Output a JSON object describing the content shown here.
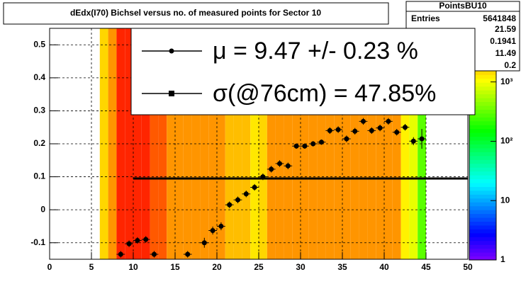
{
  "chart_data": {
    "type": "heatmap_profile",
    "title": "dEdx(I70) Bichsel versus no. of measured points for Sector 10",
    "xlim": [
      0,
      50
    ],
    "xticks": [
      0,
      5,
      10,
      15,
      20,
      25,
      30,
      35,
      40,
      45,
      50
    ],
    "ylim": [
      -0.15,
      0.55
    ],
    "yticks": [
      -0.1,
      0,
      0.1,
      0.2,
      0.3,
      0.4,
      0.5
    ],
    "zlim": [
      1,
      8000
    ],
    "zlog": true,
    "zticks": [
      1,
      10,
      {
        "value": 100,
        "label": "10²"
      },
      {
        "value": 1000,
        "label": "10³"
      }
    ],
    "grid": true,
    "heatmap": {
      "bins": [
        6,
        7,
        8,
        9,
        10,
        11,
        12,
        13,
        14,
        15,
        16,
        17,
        18,
        19,
        20,
        21,
        22,
        23,
        24,
        25,
        26,
        27,
        28,
        29,
        30,
        31,
        32,
        33,
        34,
        35,
        36,
        37,
        38,
        39,
        40,
        41,
        42,
        43,
        44,
        45
      ],
      "counts": [
        1500,
        2500,
        6000,
        6000,
        6000,
        6000,
        4000,
        4000,
        2500,
        2500,
        2500,
        2500,
        2500,
        2500,
        2500,
        1800,
        1800,
        1800,
        1300,
        1500,
        2500,
        2500,
        2500,
        2500,
        2500,
        2500,
        2500,
        2500,
        2500,
        2500,
        2500,
        2500,
        2500,
        2500,
        2500,
        2500,
        1200,
        900,
        300
      ]
    },
    "profile": {
      "color": "#000000",
      "x": [
        8.5,
        9.5,
        10.5,
        11.5,
        12.5,
        16.5,
        18.5,
        19.5,
        20.5,
        21.5,
        22.5,
        23.5,
        24.5,
        25.5,
        26.5,
        27.5,
        28.5,
        29.5,
        30.5,
        31.5,
        32.5,
        33.5,
        34.5,
        35.5,
        36.5,
        37.5,
        38.5,
        39.5,
        40.5,
        41.5,
        42.5,
        43.5,
        44.5
      ],
      "y": [
        -0.135,
        -0.103,
        -0.093,
        -0.09,
        -0.135,
        -0.135,
        -0.1,
        -0.063,
        -0.05,
        0.015,
        0.03,
        0.048,
        0.068,
        0.1,
        0.123,
        0.14,
        0.133,
        0.193,
        0.193,
        0.2,
        0.205,
        0.24,
        0.243,
        0.215,
        0.238,
        0.268,
        0.24,
        0.248,
        0.268,
        0.235,
        0.25,
        0.208,
        0.215
      ],
      "err": [
        0.01,
        0.01,
        0.01,
        0.01,
        0.01,
        0.01,
        0.015,
        0.012,
        0.012,
        0.01,
        0.01,
        0.01,
        0.01,
        0.01,
        0.01,
        0.01,
        0.01,
        0.008,
        0.008,
        0.008,
        0.008,
        0.01,
        0.01,
        0.01,
        0.01,
        0.01,
        0.01,
        0.01,
        0.01,
        0.01,
        0.01,
        0.012,
        0.03
      ]
    },
    "fit": {
      "x": [
        10,
        50
      ],
      "y": 0.0947,
      "color": "#000000"
    },
    "legend": [
      "μ  =  9.47 +/-  0.23 %",
      "σ(@76cm) = 47.85%"
    ],
    "stats": {
      "title": "PointsBU10",
      "label": "Entries",
      "entries": "5641848",
      "values": [
        "21.59",
        "0.1941",
        "11.49",
        "0.2"
      ]
    }
  }
}
